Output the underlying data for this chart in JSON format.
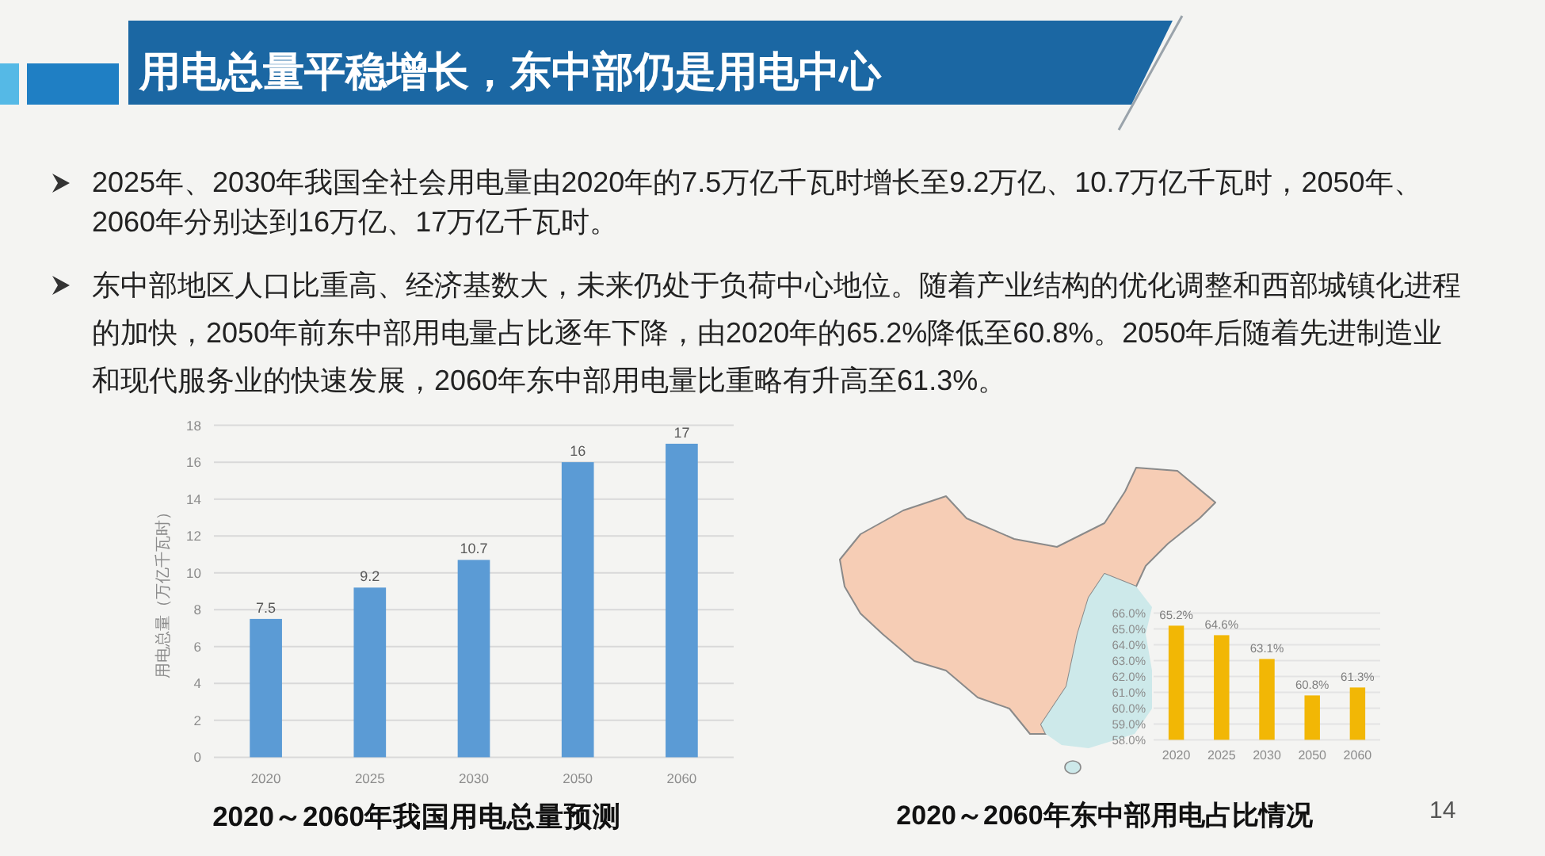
{
  "chart_data": [
    {
      "type": "other",
      "title": "用电总量平稳增长，东中部仍是用电中心",
      "annotations": [
        "2025年、2030年我国全社会用电量由2020年的7.5万亿千瓦时增长至9.2万亿、10.7万亿千瓦时，2050年、2060年分别达到16万亿、17万亿千瓦时。",
        "东中部地区人口比重高、经济基数大，未来仍处于负荷中心地位。随着产业结构的优化调整和西部城镇化进程的加快，2050年前东中部用电量占比逐年下降，由2020年的65.2%降低至60.8%。2050年后随着先进制造业和现代服务业的快速发展，2060年东中部用电量比重略有升高至61.3%。",
        "14"
      ]
    },
    {
      "type": "bar",
      "title": "2020～2060年我国用电总量预测",
      "ylabel": "用电总量（万亿千瓦时）",
      "categories": [
        "2020",
        "2025",
        "2030",
        "2050",
        "2060"
      ],
      "values": [
        7.5,
        9.2,
        10.7,
        16,
        17
      ],
      "color": "#5b9bd5",
      "ylim": [
        0,
        18
      ],
      "yticks": [
        0,
        2,
        4,
        6,
        8,
        10,
        12,
        14,
        16,
        18
      ],
      "grid": "y",
      "data_labels": true
    },
    {
      "type": "bar",
      "title": "2020～2060年东中部用电占比情况",
      "categories": [
        "2020",
        "2025",
        "2030",
        "2050",
        "2060"
      ],
      "values": [
        65.2,
        64.6,
        63.1,
        60.8,
        61.3
      ],
      "value_labels": [
        "65.2%",
        "64.6%",
        "63.1%",
        "60.8%",
        "61.3%"
      ],
      "color": "#f2b705",
      "ylim": [
        58,
        66
      ],
      "yticks": [
        {
          "value": 58,
          "label": "58.0%"
        },
        {
          "value": 59,
          "label": "59.0%"
        },
        {
          "value": 60,
          "label": "60.0%"
        },
        {
          "value": 61,
          "label": "61.0%"
        },
        {
          "value": 62,
          "label": "62.0%"
        },
        {
          "value": 63,
          "label": "63.0%"
        },
        {
          "value": 64,
          "label": "64.0%"
        },
        {
          "value": 65,
          "label": "65.0%"
        },
        {
          "value": 66,
          "label": "66.0%"
        }
      ],
      "grid": "y"
    }
  ]
}
